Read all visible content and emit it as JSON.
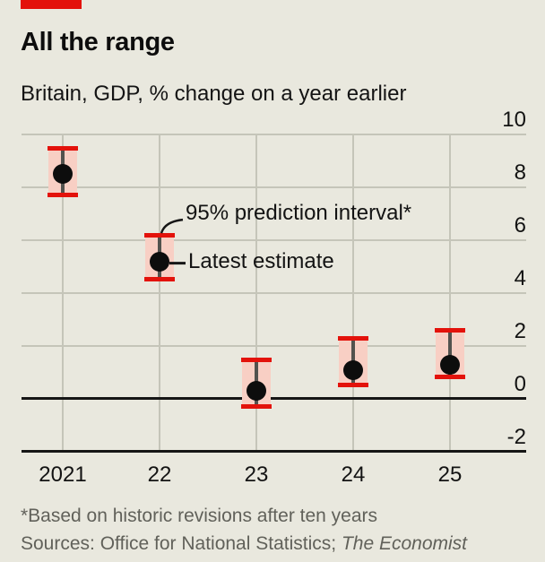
{
  "chart_data": {
    "type": "error-bar",
    "title": "All the range",
    "subtitle": "Britain, GDP, % change on a year earlier",
    "categories": [
      "2021",
      "22",
      "23",
      "24",
      "25"
    ],
    "points": [
      {
        "category": "2021",
        "estimate": 8.5,
        "low": 7.7,
        "high": 9.5
      },
      {
        "category": "22",
        "estimate": 5.2,
        "low": 4.5,
        "high": 6.2
      },
      {
        "category": "23",
        "estimate": 0.3,
        "low": -0.3,
        "high": 1.5
      },
      {
        "category": "24",
        "estimate": 1.1,
        "low": 0.5,
        "high": 2.3
      },
      {
        "category": "25",
        "estimate": 1.3,
        "low": 0.8,
        "high": 2.6
      }
    ],
    "series": [
      {
        "name": "Latest estimate",
        "values": [
          8.5,
          5.2,
          0.3,
          1.1,
          1.3
        ]
      },
      {
        "name": "95% prediction interval lower",
        "values": [
          7.7,
          4.5,
          -0.3,
          0.5,
          0.8
        ]
      },
      {
        "name": "95% prediction interval upper",
        "values": [
          9.5,
          6.2,
          1.5,
          2.3,
          2.6
        ]
      }
    ],
    "ylim": [
      -2,
      10
    ],
    "yticks": [
      10,
      8,
      6,
      4,
      2,
      0,
      -2
    ],
    "ytick_labels": [
      "10",
      "8",
      "6",
      "4",
      "2",
      "0",
      "-2"
    ],
    "grid": true,
    "legend_position": "annotations-inline",
    "annotations": [
      {
        "text": "95% prediction interval*",
        "anchor_category": "22",
        "anchor": "upper"
      },
      {
        "text": "Latest estimate",
        "anchor_category": "22",
        "anchor": "estimate"
      }
    ],
    "colors": {
      "background": "#e9e8de",
      "brand_red": "#e3120b",
      "cap_red": "#e3120b",
      "range_pink": "#f8cfc4",
      "gridline_grey": "#c5c5b9",
      "axis_black": "#161616",
      "stem_grey": "#52524e",
      "dot_black": "#0d0d0d",
      "text": "#131313"
    }
  },
  "footer": {
    "footnote": "*Based on historic revisions after ten years",
    "sources_prefix": "Sources: Office for National Statistics; ",
    "sources_italic": "The Economist"
  }
}
